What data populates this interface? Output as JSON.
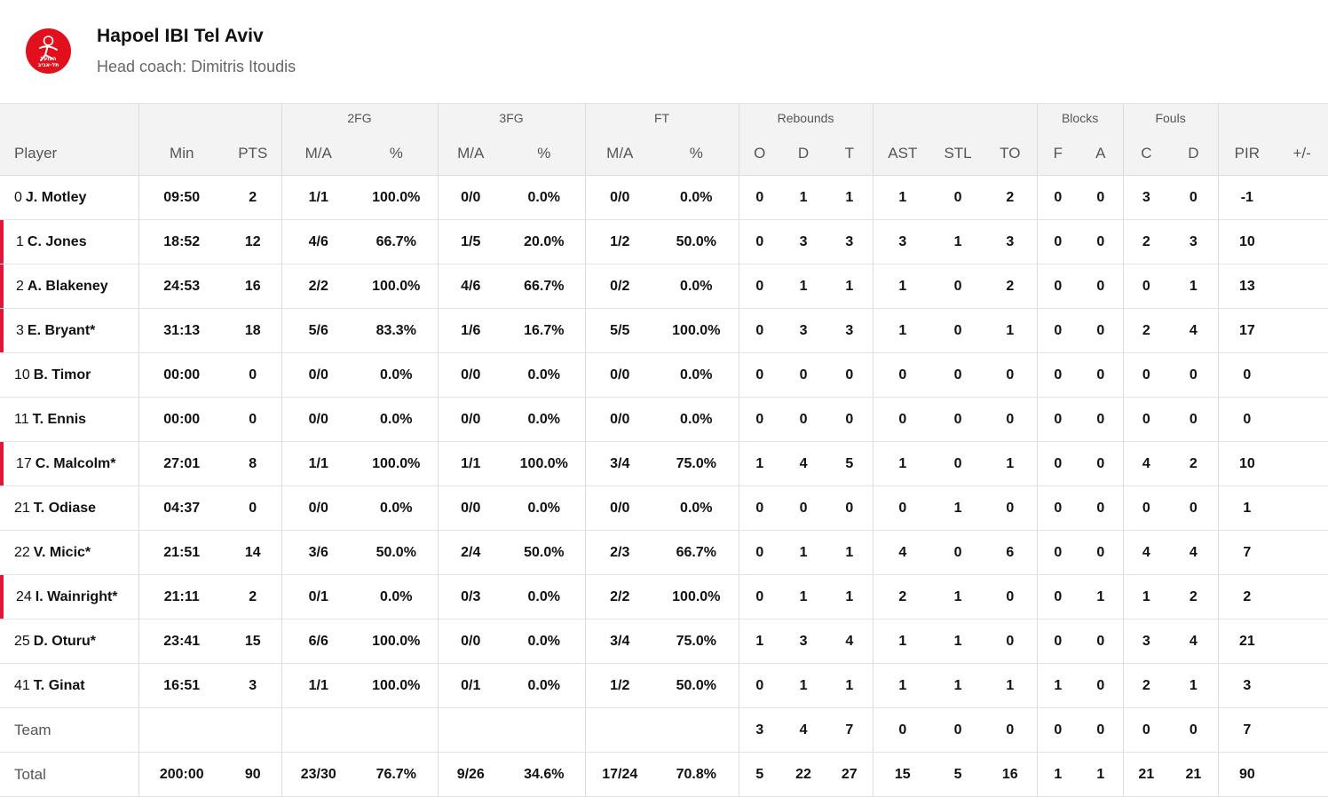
{
  "team": {
    "name": "Hapoel IBI Tel Aviv",
    "coach": "Head coach: Dimitris Itoudis",
    "logo_text_line1": "הפועל",
    "logo_text_line2": "תל-אביב",
    "brand_color": "#e2101d",
    "starter_marker_color": "#e0173b"
  },
  "groups": {
    "fg2": "2FG",
    "fg3": "3FG",
    "ft": "FT",
    "rebounds": "Rebounds",
    "blocks": "Blocks",
    "fouls": "Fouls"
  },
  "columns": {
    "player": "Player",
    "min": "Min",
    "pts": "PTS",
    "fg2_ma": "M/A",
    "fg2_pct": "%",
    "fg3_ma": "M/A",
    "fg3_pct": "%",
    "ft_ma": "M/A",
    "ft_pct": "%",
    "reb_o": "O",
    "reb_d": "D",
    "reb_t": "T",
    "ast": "AST",
    "stl": "STL",
    "to": "TO",
    "blk_f": "F",
    "blk_a": "A",
    "foul_c": "C",
    "foul_d": "D",
    "pir": "PIR",
    "pm": "+/-"
  },
  "players": [
    {
      "num": "0",
      "name": "J. Motley",
      "starter": false,
      "min": "09:50",
      "pts": "2",
      "fg2_ma": "1/1",
      "fg2_pct": "100.0%",
      "fg3_ma": "0/0",
      "fg3_pct": "0.0%",
      "ft_ma": "0/0",
      "ft_pct": "0.0%",
      "reb_o": "0",
      "reb_d": "1",
      "reb_t": "1",
      "ast": "1",
      "stl": "0",
      "to": "2",
      "blk_f": "0",
      "blk_a": "0",
      "foul_c": "3",
      "foul_d": "0",
      "pir": "-1",
      "pm": ""
    },
    {
      "num": "1",
      "name": "C. Jones",
      "starter": true,
      "min": "18:52",
      "pts": "12",
      "fg2_ma": "4/6",
      "fg2_pct": "66.7%",
      "fg3_ma": "1/5",
      "fg3_pct": "20.0%",
      "ft_ma": "1/2",
      "ft_pct": "50.0%",
      "reb_o": "0",
      "reb_d": "3",
      "reb_t": "3",
      "ast": "3",
      "stl": "1",
      "to": "3",
      "blk_f": "0",
      "blk_a": "0",
      "foul_c": "2",
      "foul_d": "3",
      "pir": "10",
      "pm": ""
    },
    {
      "num": "2",
      "name": "A. Blakeney",
      "starter": true,
      "min": "24:53",
      "pts": "16",
      "fg2_ma": "2/2",
      "fg2_pct": "100.0%",
      "fg3_ma": "4/6",
      "fg3_pct": "66.7%",
      "ft_ma": "0/2",
      "ft_pct": "0.0%",
      "reb_o": "0",
      "reb_d": "1",
      "reb_t": "1",
      "ast": "1",
      "stl": "0",
      "to": "2",
      "blk_f": "0",
      "blk_a": "0",
      "foul_c": "0",
      "foul_d": "1",
      "pir": "13",
      "pm": ""
    },
    {
      "num": "3",
      "name": "E. Bryant*",
      "starter": true,
      "min": "31:13",
      "pts": "18",
      "fg2_ma": "5/6",
      "fg2_pct": "83.3%",
      "fg3_ma": "1/6",
      "fg3_pct": "16.7%",
      "ft_ma": "5/5",
      "ft_pct": "100.0%",
      "reb_o": "0",
      "reb_d": "3",
      "reb_t": "3",
      "ast": "1",
      "stl": "0",
      "to": "1",
      "blk_f": "0",
      "blk_a": "0",
      "foul_c": "2",
      "foul_d": "4",
      "pir": "17",
      "pm": ""
    },
    {
      "num": "10",
      "name": "B. Timor",
      "starter": false,
      "min": "00:00",
      "pts": "0",
      "fg2_ma": "0/0",
      "fg2_pct": "0.0%",
      "fg3_ma": "0/0",
      "fg3_pct": "0.0%",
      "ft_ma": "0/0",
      "ft_pct": "0.0%",
      "reb_o": "0",
      "reb_d": "0",
      "reb_t": "0",
      "ast": "0",
      "stl": "0",
      "to": "0",
      "blk_f": "0",
      "blk_a": "0",
      "foul_c": "0",
      "foul_d": "0",
      "pir": "0",
      "pm": ""
    },
    {
      "num": "11",
      "name": "T. Ennis",
      "starter": false,
      "min": "00:00",
      "pts": "0",
      "fg2_ma": "0/0",
      "fg2_pct": "0.0%",
      "fg3_ma": "0/0",
      "fg3_pct": "0.0%",
      "ft_ma": "0/0",
      "ft_pct": "0.0%",
      "reb_o": "0",
      "reb_d": "0",
      "reb_t": "0",
      "ast": "0",
      "stl": "0",
      "to": "0",
      "blk_f": "0",
      "blk_a": "0",
      "foul_c": "0",
      "foul_d": "0",
      "pir": "0",
      "pm": ""
    },
    {
      "num": "17",
      "name": "C. Malcolm*",
      "starter": true,
      "min": "27:01",
      "pts": "8",
      "fg2_ma": "1/1",
      "fg2_pct": "100.0%",
      "fg3_ma": "1/1",
      "fg3_pct": "100.0%",
      "ft_ma": "3/4",
      "ft_pct": "75.0%",
      "reb_o": "1",
      "reb_d": "4",
      "reb_t": "5",
      "ast": "1",
      "stl": "0",
      "to": "1",
      "blk_f": "0",
      "blk_a": "0",
      "foul_c": "4",
      "foul_d": "2",
      "pir": "10",
      "pm": ""
    },
    {
      "num": "21",
      "name": "T. Odiase",
      "starter": false,
      "min": "04:37",
      "pts": "0",
      "fg2_ma": "0/0",
      "fg2_pct": "0.0%",
      "fg3_ma": "0/0",
      "fg3_pct": "0.0%",
      "ft_ma": "0/0",
      "ft_pct": "0.0%",
      "reb_o": "0",
      "reb_d": "0",
      "reb_t": "0",
      "ast": "0",
      "stl": "1",
      "to": "0",
      "blk_f": "0",
      "blk_a": "0",
      "foul_c": "0",
      "foul_d": "0",
      "pir": "1",
      "pm": ""
    },
    {
      "num": "22",
      "name": "V. Micic*",
      "starter": false,
      "min": "21:51",
      "pts": "14",
      "fg2_ma": "3/6",
      "fg2_pct": "50.0%",
      "fg3_ma": "2/4",
      "fg3_pct": "50.0%",
      "ft_ma": "2/3",
      "ft_pct": "66.7%",
      "reb_o": "0",
      "reb_d": "1",
      "reb_t": "1",
      "ast": "4",
      "stl": "0",
      "to": "6",
      "blk_f": "0",
      "blk_a": "0",
      "foul_c": "4",
      "foul_d": "4",
      "pir": "7",
      "pm": ""
    },
    {
      "num": "24",
      "name": "I. Wainright*",
      "starter": true,
      "min": "21:11",
      "pts": "2",
      "fg2_ma": "0/1",
      "fg2_pct": "0.0%",
      "fg3_ma": "0/3",
      "fg3_pct": "0.0%",
      "ft_ma": "2/2",
      "ft_pct": "100.0%",
      "reb_o": "0",
      "reb_d": "1",
      "reb_t": "1",
      "ast": "2",
      "stl": "1",
      "to": "0",
      "blk_f": "0",
      "blk_a": "1",
      "foul_c": "1",
      "foul_d": "2",
      "pir": "2",
      "pm": ""
    },
    {
      "num": "25",
      "name": "D. Oturu*",
      "starter": false,
      "min": "23:41",
      "pts": "15",
      "fg2_ma": "6/6",
      "fg2_pct": "100.0%",
      "fg3_ma": "0/0",
      "fg3_pct": "0.0%",
      "ft_ma": "3/4",
      "ft_pct": "75.0%",
      "reb_o": "1",
      "reb_d": "3",
      "reb_t": "4",
      "ast": "1",
      "stl": "1",
      "to": "0",
      "blk_f": "0",
      "blk_a": "0",
      "foul_c": "3",
      "foul_d": "4",
      "pir": "21",
      "pm": ""
    },
    {
      "num": "41",
      "name": "T. Ginat",
      "starter": false,
      "min": "16:51",
      "pts": "3",
      "fg2_ma": "1/1",
      "fg2_pct": "100.0%",
      "fg3_ma": "0/1",
      "fg3_pct": "0.0%",
      "ft_ma": "1/2",
      "ft_pct": "50.0%",
      "reb_o": "0",
      "reb_d": "1",
      "reb_t": "1",
      "ast": "1",
      "stl": "1",
      "to": "1",
      "blk_f": "1",
      "blk_a": "0",
      "foul_c": "2",
      "foul_d": "1",
      "pir": "3",
      "pm": ""
    }
  ],
  "team_row": {
    "label": "Team",
    "min": "",
    "pts": "",
    "fg2_ma": "",
    "fg2_pct": "",
    "fg3_ma": "",
    "fg3_pct": "",
    "ft_ma": "",
    "ft_pct": "",
    "reb_o": "3",
    "reb_d": "4",
    "reb_t": "7",
    "ast": "0",
    "stl": "0",
    "to": "0",
    "blk_f": "0",
    "blk_a": "0",
    "foul_c": "0",
    "foul_d": "0",
    "pir": "7",
    "pm": ""
  },
  "total_row": {
    "label": "Total",
    "min": "200:00",
    "pts": "90",
    "fg2_ma": "23/30",
    "fg2_pct": "76.7%",
    "fg3_ma": "9/26",
    "fg3_pct": "34.6%",
    "ft_ma": "17/24",
    "ft_pct": "70.8%",
    "reb_o": "5",
    "reb_d": "22",
    "reb_t": "27",
    "ast": "15",
    "stl": "5",
    "to": "16",
    "blk_f": "1",
    "blk_a": "1",
    "foul_c": "21",
    "foul_d": "21",
    "pir": "90",
    "pm": ""
  }
}
